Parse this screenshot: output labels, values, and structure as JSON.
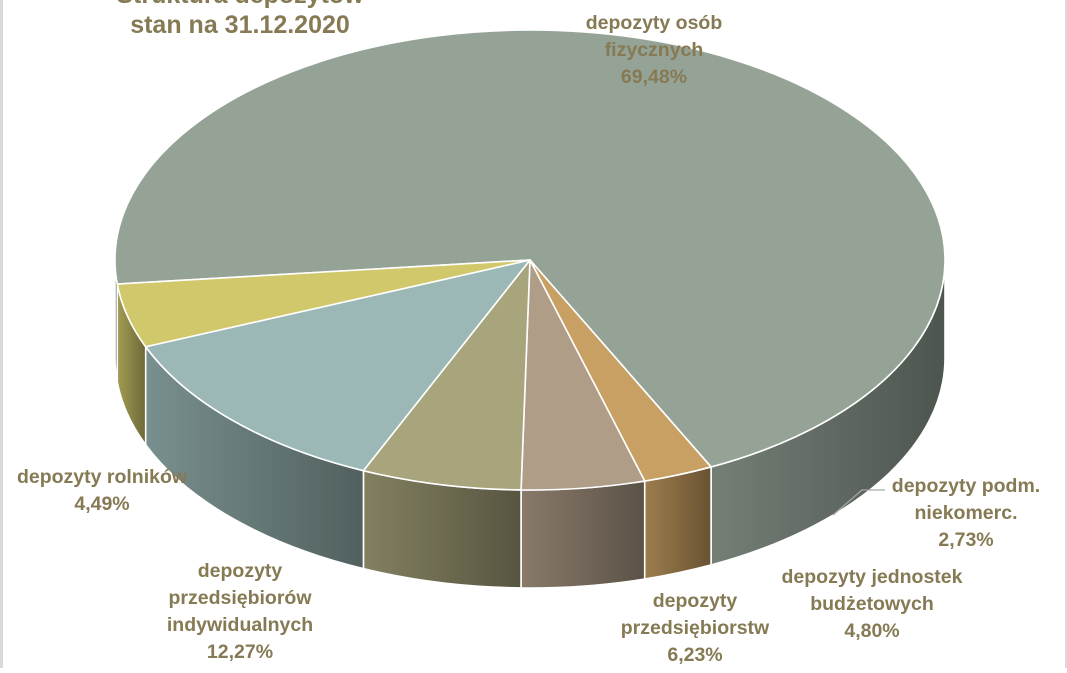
{
  "chart_data": {
    "type": "pie",
    "title_line1": "Struktura depozytów",
    "title_line2": "stan na 31.12.2020",
    "slices": [
      {
        "name": "depozyty osób fizycznych",
        "label_lines": [
          "depozyty osób",
          "fizycznych"
        ],
        "value": 69.48,
        "value_text": "69,48%",
        "color": "#95a397"
      },
      {
        "name": "depozyty podm. niekomerc.",
        "label_lines": [
          "depozyty podm.",
          "niekomerc."
        ],
        "value": 2.73,
        "value_text": "2,73%",
        "color": "#c9a063"
      },
      {
        "name": "depozyty jednostek budżetowych",
        "label_lines": [
          "depozyty jednostek",
          "budżetowych"
        ],
        "value": 4.8,
        "value_text": "4,80%",
        "color": "#af9d88"
      },
      {
        "name": "depozyty przedsiębiorstw",
        "label_lines": [
          "depozyty",
          "przedsiębiorstw"
        ],
        "value": 6.23,
        "value_text": "6,23%",
        "color": "#a8a47c"
      },
      {
        "name": "depozyty przedsiębiorów indywidualnych",
        "label_lines": [
          "depozyty",
          "przedsiębiorów",
          "indywidualnych"
        ],
        "value": 12.27,
        "value_text": "12,27%",
        "color": "#9bb8b6"
      },
      {
        "name": "depozyty rolników",
        "label_lines": [
          "depozyty rolników"
        ],
        "value": 4.49,
        "value_text": "4,49%",
        "color": "#d1c86b"
      }
    ],
    "label_color": "#857a53"
  }
}
